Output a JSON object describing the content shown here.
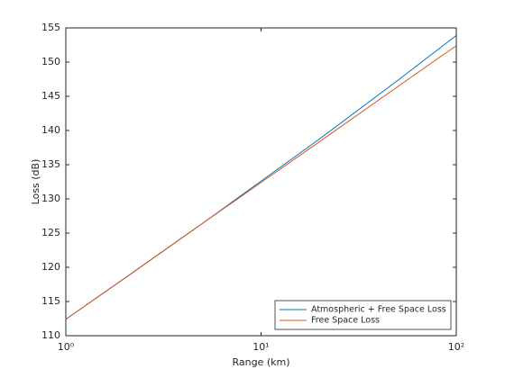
{
  "chart_data": {
    "type": "line",
    "x_label": "Range (km)",
    "y_label": "Loss (dB)",
    "xscale": "log",
    "x": [
      1,
      2,
      5,
      10,
      20,
      50,
      100
    ],
    "series": [
      {
        "name": "Atmospheric + Free Space Loss",
        "color": "#0072bd",
        "values": [
          112.4,
          118.4,
          126.4,
          132.6,
          138.8,
          147.3,
          153.9
        ]
      },
      {
        "name": "Free Space Loss",
        "color": "#d95319",
        "values": [
          112.4,
          118.4,
          126.4,
          132.4,
          138.4,
          146.4,
          152.4
        ]
      }
    ],
    "xlim": [
      1,
      100
    ],
    "xticks": [
      {
        "value": 1,
        "label": "10⁰"
      },
      {
        "value": 10,
        "label": "10¹"
      },
      {
        "value": 100,
        "label": "10²"
      }
    ],
    "ylim": [
      110,
      155
    ],
    "yticks": [
      110,
      115,
      120,
      125,
      130,
      135,
      140,
      145,
      150,
      155
    ],
    "legend": "lower-right"
  }
}
